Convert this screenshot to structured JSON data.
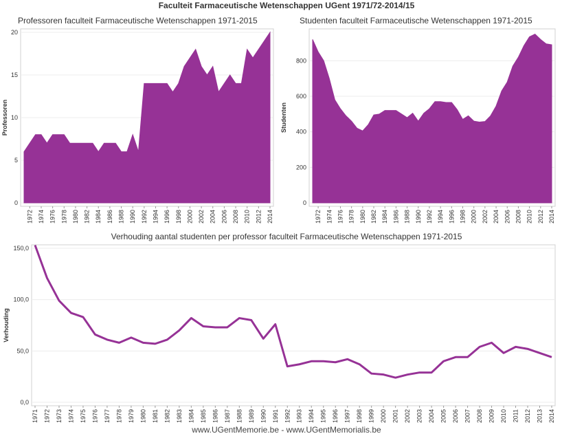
{
  "page": {
    "title": "Faculteit Farmaceutische Wetenschappen UGent 1971/72-2014/15",
    "footer": "www.UGentMemorie.be - www.UGentMemorialis.be"
  },
  "chart_data": [
    {
      "type": "area",
      "title": "Professoren faculteit Farmaceutische Wetenschappen 1971-2015",
      "xlabel": "",
      "ylabel": "Professoren",
      "ylim": [
        0,
        20
      ],
      "yticks": [
        "0",
        "5",
        "10",
        "15",
        "20"
      ],
      "xticks": [
        "1972",
        "1974",
        "1976",
        "1978",
        "1980",
        "1982",
        "1984",
        "1986",
        "1988",
        "1990",
        "1992",
        "1994",
        "1996",
        "1998",
        "2000",
        "2002",
        "2004",
        "2006",
        "2008",
        "2010",
        "2012",
        "2014"
      ],
      "x": [
        1971,
        1972,
        1973,
        1974,
        1975,
        1976,
        1977,
        1978,
        1979,
        1980,
        1981,
        1982,
        1983,
        1984,
        1985,
        1986,
        1987,
        1988,
        1989,
        1990,
        1991,
        1992,
        1993,
        1994,
        1995,
        1996,
        1997,
        1998,
        1999,
        2000,
        2001,
        2002,
        2003,
        2004,
        2005,
        2006,
        2007,
        2008,
        2009,
        2010,
        2011,
        2012,
        2013,
        2014
      ],
      "values": [
        6,
        7,
        8,
        8,
        7,
        8,
        8,
        8,
        7,
        7,
        7,
        7,
        7,
        6,
        7,
        7,
        7,
        6,
        6,
        8,
        6,
        14,
        14,
        14,
        14,
        14,
        13,
        14,
        16,
        17,
        18,
        16,
        15,
        16,
        13,
        14,
        15,
        14,
        14,
        18,
        17,
        18,
        19,
        20
      ],
      "color": "#963296",
      "grid": true
    },
    {
      "type": "area",
      "title": "Studenten faculteit Farmaceutische Wetenschappen 1971-2015",
      "xlabel": "",
      "ylabel": "Studenten",
      "ylim": [
        0,
        960
      ],
      "yticks": [
        "0",
        "200",
        "400",
        "600",
        "800"
      ],
      "xticks": [
        "1972",
        "1974",
        "1976",
        "1978",
        "1980",
        "1982",
        "1984",
        "1986",
        "1988",
        "1990",
        "1992",
        "1994",
        "1996",
        "1998",
        "2000",
        "2002",
        "2004",
        "2006",
        "2008",
        "2010",
        "2012",
        "2014"
      ],
      "x": [
        1971,
        1972,
        1973,
        1974,
        1975,
        1976,
        1977,
        1978,
        1979,
        1980,
        1981,
        1982,
        1983,
        1984,
        1985,
        1986,
        1987,
        1988,
        1989,
        1990,
        1991,
        1992,
        1993,
        1994,
        1995,
        1996,
        1997,
        1998,
        1999,
        2000,
        2001,
        2002,
        2003,
        2004,
        2005,
        2006,
        2007,
        2008,
        2009,
        2010,
        2011,
        2012,
        2013,
        2014
      ],
      "values": [
        920,
        850,
        800,
        700,
        580,
        530,
        490,
        460,
        420,
        405,
        440,
        495,
        500,
        520,
        520,
        520,
        500,
        480,
        505,
        460,
        505,
        530,
        570,
        570,
        565,
        565,
        525,
        470,
        490,
        460,
        455,
        458,
        490,
        545,
        630,
        680,
        770,
        820,
        885,
        935,
        950,
        920,
        895,
        890
      ],
      "color": "#963296",
      "grid": true
    },
    {
      "type": "line",
      "title": "Verhouding aantal studenten per professor faculteit Farmaceutische Wetenschappen 1971-2015",
      "xlabel": "",
      "ylabel": "Verhouding",
      "ylim": [
        0,
        150
      ],
      "yticks": [
        "0,0",
        "50,0",
        "100,0",
        "150,0"
      ],
      "xticks": [
        "1971",
        "1972",
        "1973",
        "1974",
        "1975",
        "1976",
        "1977",
        "1978",
        "1979",
        "1980",
        "1981",
        "1982",
        "1983",
        "1984",
        "1985",
        "1986",
        "1987",
        "1988",
        "1989",
        "1990",
        "1991",
        "1992",
        "1993",
        "1994",
        "1995",
        "1996",
        "1997",
        "1998",
        "1999",
        "2000",
        "2001",
        "2002",
        "2003",
        "2004",
        "2005",
        "2006",
        "2007",
        "2008",
        "2009",
        "2010",
        "2011",
        "2012",
        "2013",
        "2014"
      ],
      "x": [
        1971,
        1972,
        1973,
        1974,
        1975,
        1976,
        1977,
        1978,
        1979,
        1980,
        1981,
        1982,
        1983,
        1984,
        1985,
        1986,
        1987,
        1988,
        1989,
        1990,
        1991,
        1992,
        1993,
        1994,
        1995,
        1996,
        1997,
        1998,
        1999,
        2000,
        2001,
        2002,
        2003,
        2004,
        2005,
        2006,
        2007,
        2008,
        2009,
        2010,
        2011,
        2012,
        2013,
        2014
      ],
      "values": [
        153,
        121,
        99,
        87,
        83,
        66,
        61,
        58,
        63,
        58,
        57,
        61,
        70,
        82,
        74,
        73,
        73,
        82,
        80,
        62,
        76,
        35,
        37,
        40,
        40,
        39,
        42,
        37,
        28,
        27,
        24,
        27,
        29,
        29,
        40,
        44,
        44,
        54,
        58,
        48,
        54,
        52,
        48,
        44
      ],
      "color": "#963296",
      "grid": true
    }
  ]
}
